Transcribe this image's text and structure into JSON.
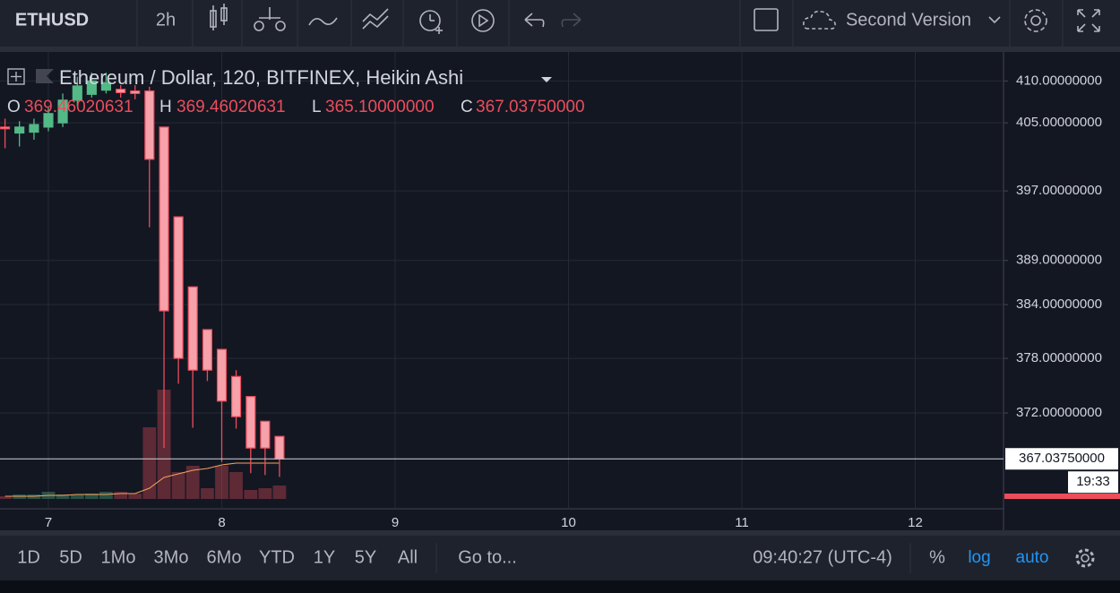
{
  "toolbar": {
    "symbol": "ETHUSD",
    "interval": "2h",
    "layout_name": "Second Version"
  },
  "legend": {
    "title": "Ethereum / Dollar, 120, BITFINEX, Heikin Ashi",
    "o_label": "O",
    "o": "369.46020631",
    "h_label": "H",
    "h": "369.46020631",
    "l_label": "L",
    "l": "365.10000000",
    "c_label": "C",
    "c": "367.03750000"
  },
  "chart": {
    "type": "candlestick",
    "log_scale": true,
    "grid": true,
    "up_color": "#53b987",
    "down_color": "#eb4d5c",
    "ylim": [
      361.8,
      413.5
    ],
    "yticks": [
      {
        "value": 410,
        "label": "410.00000000"
      },
      {
        "value": 405,
        "label": "405.00000000"
      },
      {
        "value": 397,
        "label": "397.00000000"
      },
      {
        "value": 389,
        "label": "389.00000000"
      },
      {
        "value": 384,
        "label": "384.00000000"
      },
      {
        "value": 378,
        "label": "378.00000000"
      },
      {
        "value": 372,
        "label": "372.00000000"
      }
    ],
    "last_price": {
      "value": 367.0375,
      "label": "367.03750000"
    },
    "countdown": "19:33",
    "xlim": [
      6.721,
      12.509
    ],
    "xticks": [
      7,
      8,
      9,
      10,
      11,
      12
    ],
    "x": [
      6.75,
      6.833,
      6.917,
      7,
      7.083,
      7.167,
      7.25,
      7.333,
      7.417,
      7.5,
      7.583,
      7.667,
      7.75,
      7.833,
      7.917,
      8,
      8.083,
      8.167,
      8.25,
      8.333
    ],
    "open": [
      404.5,
      403.8,
      403.9,
      404.5,
      405.0,
      407.7,
      408.4,
      408.9,
      409.0,
      408.8,
      408.8,
      404.5,
      394.0,
      386.0,
      381.2,
      379.0,
      376.0,
      373.8,
      371.1,
      369.46
    ],
    "high": [
      405.5,
      405.2,
      405.5,
      406.8,
      408.5,
      410.5,
      411.0,
      411.0,
      409.5,
      409.5,
      409.3,
      404.5,
      394.0,
      386.0,
      381.2,
      379.0,
      376.7,
      373.8,
      371.1,
      369.46
    ],
    "low": [
      402.0,
      402.2,
      403.0,
      404.0,
      404.5,
      407.0,
      408.0,
      408.5,
      408.0,
      407.8,
      392.8,
      368.2,
      375.2,
      370.4,
      375.5,
      366.7,
      370.3,
      365.5,
      365.3,
      365.1
    ],
    "close": [
      404.3,
      404.5,
      404.8,
      406.1,
      407.7,
      409.4,
      410.0,
      409.8,
      408.6,
      408.5,
      400.7,
      383.3,
      378.0,
      376.7,
      376.7,
      373.3,
      371.6,
      368.2,
      368.2,
      367.0375
    ],
    "volume_ylim": [
      0,
      250
    ],
    "volume": [
      3,
      5,
      5,
      8,
      5,
      5,
      6,
      8,
      8,
      6,
      80,
      122,
      30,
      37,
      12,
      37,
      30,
      10,
      12,
      15
    ],
    "volume_ma": [
      3,
      3,
      3,
      4,
      4,
      5,
      5,
      5,
      6,
      6,
      12,
      24,
      28,
      32,
      34,
      38,
      40,
      40,
      40,
      40
    ],
    "volume_ma_color": "#f5a35c"
  },
  "bottom_bar": {
    "ranges": [
      "1D",
      "5D",
      "1Mo",
      "3Mo",
      "6Mo",
      "YTD",
      "1Y",
      "5Y",
      "All"
    ],
    "goto": "Go to...",
    "time": "09:40:27 (UTC-4)",
    "percent": "%",
    "log": "log",
    "auto": "auto"
  }
}
